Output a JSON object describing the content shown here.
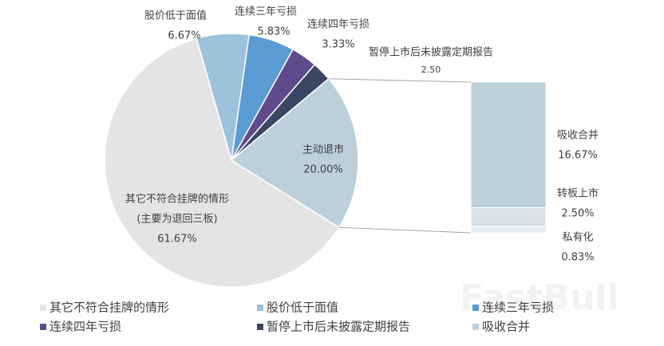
{
  "chart_data": {
    "type": "pie-of-bar",
    "categories": [
      "其它不符合挂牌的情形",
      "股价低于面值",
      "连续三年亏损",
      "连续四年亏损",
      "暂停上市后未披露定期报告",
      "主动退市"
    ],
    "values": [
      61.67,
      6.67,
      5.83,
      3.33,
      2.5,
      20.0
    ],
    "value_labels": [
      "61.67%",
      "6.67%",
      "5.83%",
      "3.33%",
      "2.50",
      "20.00%"
    ],
    "colors": [
      "#e4e4e4",
      "#9dc3dc",
      "#5b9bd5",
      "#5f4b8b",
      "#3b4664",
      "#bccfdb"
    ],
    "annotation": "(主要为退回三板)",
    "bar_categories": [
      "吸收合并",
      "转板上市",
      "私有化"
    ],
    "bar_values": [
      16.67,
      2.5,
      0.83
    ],
    "bar_value_labels": [
      "16.67%",
      "2.50%",
      "0.83%"
    ],
    "bar_colors": [
      "#bccfdb",
      "#d8e2ea",
      "#e5ecf1"
    ],
    "watermark": "FastBull"
  }
}
